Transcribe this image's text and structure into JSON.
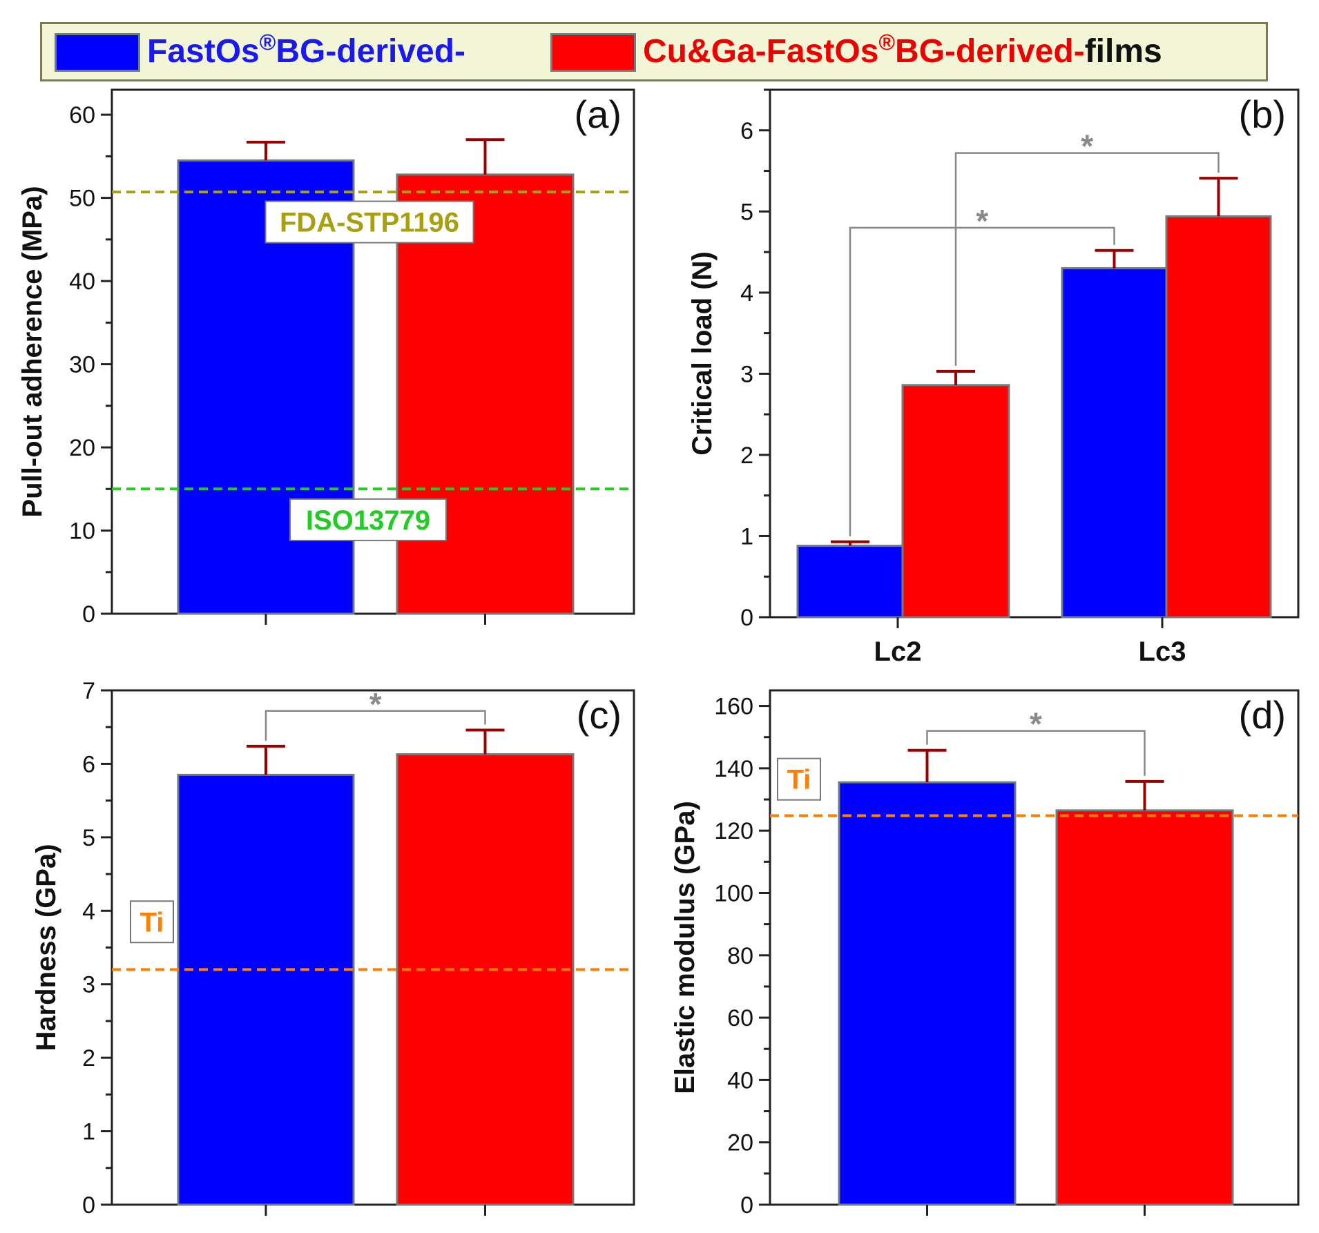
{
  "legend": {
    "series1": {
      "pre": "FastOs",
      "reg": "®",
      "post": "BG-derived-",
      "color": "#0000ff"
    },
    "series2": {
      "pre": "Cu&Ga-FastOs",
      "reg": "®",
      "post": "BG-derived-",
      "suffix": "films",
      "color": "#ff0000"
    }
  },
  "colors": {
    "blue": "#0000ff",
    "red": "#ff0000",
    "error": "#990000",
    "bar_border": "#707c7c",
    "bracket": "#888888",
    "star": "#8a8a8a"
  },
  "chart_data": [
    {
      "type": "bar",
      "panel": "(a)",
      "ylabel": "Pull-out adherence (MPa)",
      "ylim": [
        0,
        63
      ],
      "yticks": [
        0,
        10,
        20,
        30,
        40,
        50,
        60
      ],
      "categories": [
        ""
      ],
      "series": [
        {
          "name": "FastOs®BG-derived-films",
          "values": [
            54.5
          ],
          "errors": [
            2.2
          ]
        },
        {
          "name": "Cu&Ga-FastOs®BG-derived-films",
          "values": [
            52.8
          ],
          "errors": [
            4.2
          ]
        }
      ],
      "hlines": [
        {
          "value": 50.7,
          "label": "FDA-STP1196",
          "color": "#a8a012",
          "label_value": 47.1
        },
        {
          "value": 15.0,
          "label": "ISO13779",
          "color": "#22cc22",
          "label_value": 11.3
        }
      ],
      "significance": []
    },
    {
      "type": "bar",
      "panel": "(b)",
      "ylabel": "Critical load (N)",
      "ylim": [
        0,
        6.5
      ],
      "yticks": [
        0,
        1,
        2,
        3,
        4,
        5,
        6
      ],
      "categories": [
        "Lc2",
        "Lc3"
      ],
      "series": [
        {
          "name": "FastOs®BG-derived-films",
          "values": [
            0.88,
            4.3
          ],
          "errors": [
            0.05,
            0.22
          ]
        },
        {
          "name": "Cu&Ga-FastOs®BG-derived-films",
          "values": [
            2.86,
            4.94
          ],
          "errors": [
            0.17,
            0.47
          ]
        }
      ],
      "hlines": [],
      "significance": [
        {
          "from": [
            0,
            0
          ],
          "to": [
            1,
            0
          ],
          "level": 4.8,
          "label": "*"
        },
        {
          "from": [
            0,
            1
          ],
          "to": [
            1,
            1
          ],
          "level": 5.72,
          "label": "*"
        }
      ]
    },
    {
      "type": "bar",
      "panel": "(c)",
      "ylabel": "Hardness (GPa)",
      "ylim": [
        0,
        7
      ],
      "yticks": [
        0,
        1,
        2,
        3,
        4,
        5,
        6,
        7
      ],
      "categories": [
        ""
      ],
      "series": [
        {
          "name": "FastOs®BG-derived-films",
          "values": [
            5.85
          ],
          "errors": [
            0.39
          ]
        },
        {
          "name": "Cu&Ga-FastOs®BG-derived-films",
          "values": [
            6.13
          ],
          "errors": [
            0.33
          ]
        }
      ],
      "hlines": [
        {
          "value": 3.2,
          "label": "Ti",
          "color": "#ff8000",
          "label_value": 3.85
        }
      ],
      "significance": [
        {
          "from": [
            0,
            0
          ],
          "to": [
            0,
            1
          ],
          "level": 6.72,
          "label": "*"
        }
      ]
    },
    {
      "type": "bar",
      "panel": "(d)",
      "ylabel": "Elastic modulus (GPa)",
      "ylim": [
        0,
        165
      ],
      "yticks": [
        0,
        20,
        40,
        60,
        80,
        100,
        120,
        140,
        160
      ],
      "categories": [
        ""
      ],
      "series": [
        {
          "name": "FastOs®BG-derived-films",
          "values": [
            135.5
          ],
          "errors": [
            10.3
          ]
        },
        {
          "name": "Cu&Ga-FastOs®BG-derived-films",
          "values": [
            126.5
          ],
          "errors": [
            9.3
          ]
        }
      ],
      "hlines": [
        {
          "value": 124.8,
          "label": "Ti",
          "color": "#ff8000",
          "label_value": 136.5
        }
      ],
      "significance": [
        {
          "from": [
            0,
            0
          ],
          "to": [
            0,
            1
          ],
          "level": 152,
          "label": "*"
        }
      ]
    }
  ]
}
